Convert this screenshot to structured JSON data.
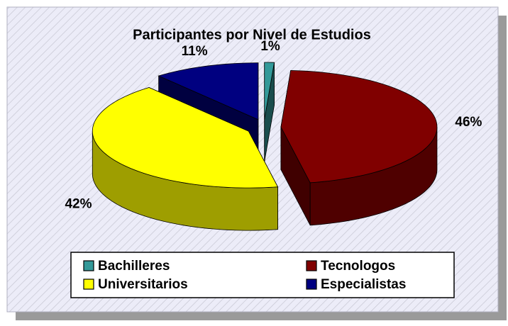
{
  "chart_data": {
    "type": "pie",
    "title": "Participantes por Nivel de Estudios",
    "categories": [
      "Bachilleres",
      "Tecnologos",
      "Universitarios",
      "Especialistas"
    ],
    "values": [
      1,
      46,
      42,
      11
    ],
    "value_labels": [
      "1%",
      "46%",
      "42%",
      "11%"
    ],
    "colors": [
      "#339999",
      "#800000",
      "#ffff00",
      "#000080"
    ],
    "legend": "bottom"
  }
}
